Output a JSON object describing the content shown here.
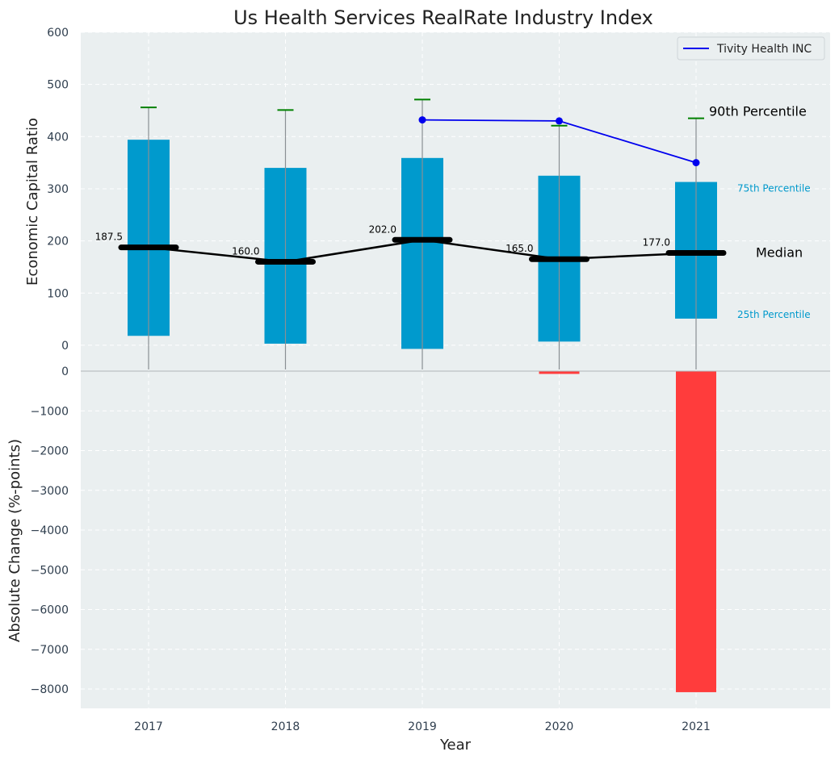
{
  "chart_data": {
    "title": "Us Health Services RealRate Industry Index",
    "xlabel": "Year",
    "years": [
      "2017",
      "2018",
      "2019",
      "2020",
      "2021"
    ],
    "top_panel": {
      "type": "box",
      "ylabel": "Economic Capital Ratio",
      "ylim": [
        -50,
        600
      ],
      "yticks": [
        "0",
        "100",
        "200",
        "300",
        "400",
        "500",
        "600"
      ],
      "p25": [
        18,
        3,
        -7,
        7,
        51
      ],
      "p75": [
        394,
        340,
        359,
        325,
        313
      ],
      "p90": [
        456,
        451,
        471,
        421,
        435
      ],
      "median": [
        187.5,
        160.0,
        202.0,
        165.0,
        177.0
      ],
      "median_labels": [
        "187.5",
        "160.0",
        "202.0",
        "165.0",
        "177.0"
      ],
      "company_series": {
        "name": "Tivity Health INC",
        "x": [
          "2019",
          "2020",
          "2021"
        ],
        "values": [
          432,
          430,
          350
        ]
      },
      "annotations": {
        "p90": "90th Percentile",
        "p75": "75th Percentile",
        "median": "Median",
        "p25": "25th Percentile"
      },
      "grid": true,
      "legend_position": "top-right"
    },
    "bottom_panel": {
      "type": "bar",
      "ylabel": "Absolute Change (%-points)",
      "ylim": [
        -8500,
        0
      ],
      "yticks": [
        "0",
        "−1000",
        "−2000",
        "−3000",
        "−4000",
        "−5000",
        "−6000",
        "−7000",
        "−8000"
      ],
      "values": [
        0,
        0,
        0,
        -70,
        -8080
      ],
      "grid": true
    }
  },
  "colors": {
    "panel_bg": "#eaeff0",
    "box": "#009acd",
    "median": "#000000",
    "p90_cap": "#008000",
    "whisker": "#8a8f94",
    "company_line": "#0000ee",
    "neg_bar": "#ff3c3c",
    "annotation_cyan": "#0099cc"
  }
}
